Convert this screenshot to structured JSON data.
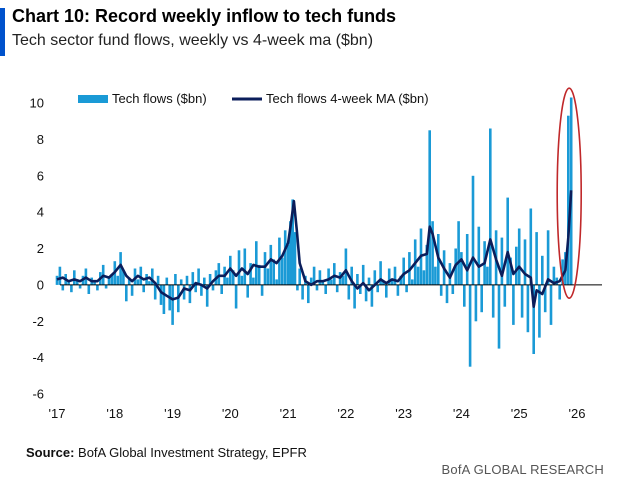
{
  "header": {
    "title": "Chart 10: Record weekly inflow to tech funds",
    "subtitle": "Tech sector fund flows, weekly vs 4-week ma ($bn)"
  },
  "footer": {
    "source_label": "Source:",
    "source_text": " BofA Global Investment Strategy, EPFR",
    "brand": "BofA GLOBAL RESEARCH"
  },
  "colors": {
    "flows": "#1a9ad6",
    "ma": "#0b1e5b",
    "highlight": "#c0282a",
    "title_accent": "#0052cc"
  },
  "chart_data": {
    "type": "bar",
    "title": "Chart 10: Record weekly inflow to tech funds",
    "subtitle": "Tech sector fund flows, weekly vs 4-week ma ($bn)",
    "xlabel": "",
    "ylabel": "",
    "x_tick_labels": [
      "'17",
      "'18",
      "'19",
      "'20",
      "'21",
      "'22",
      "'23",
      "'24",
      "'25",
      "'26"
    ],
    "y_tick_labels": [
      "10",
      "8",
      "6",
      "4",
      "2",
      "0",
      "-2",
      "-4",
      "-6"
    ],
    "ylim": [
      -6,
      10
    ],
    "xlim": [
      2017,
      2026
    ],
    "grid": false,
    "legend_position": "top-left",
    "annotation": "red ellipse highlighting latest record inflow (late 2025)",
    "series": [
      {
        "name": "Tech flows ($bn)",
        "kind": "bar",
        "points": [
          [
            2017.0,
            0.5
          ],
          [
            2017.05,
            1.0
          ],
          [
            2017.1,
            -0.3
          ],
          [
            2017.15,
            0.6
          ],
          [
            2017.2,
            0.2
          ],
          [
            2017.25,
            -0.4
          ],
          [
            2017.3,
            0.8
          ],
          [
            2017.35,
            0.3
          ],
          [
            2017.4,
            -0.2
          ],
          [
            2017.45,
            0.5
          ],
          [
            2017.5,
            0.9
          ],
          [
            2017.55,
            -0.5
          ],
          [
            2017.6,
            0.4
          ],
          [
            2017.65,
            0.2
          ],
          [
            2017.7,
            -0.3
          ],
          [
            2017.75,
            0.7
          ],
          [
            2017.8,
            1.1
          ],
          [
            2017.85,
            -0.2
          ],
          [
            2017.9,
            0.4
          ],
          [
            2017.95,
            0.6
          ],
          [
            2018.0,
            1.3
          ],
          [
            2018.05,
            0.5
          ],
          [
            2018.1,
            1.8
          ],
          [
            2018.15,
            0.8
          ],
          [
            2018.2,
            -0.9
          ],
          [
            2018.25,
            0.4
          ],
          [
            2018.3,
            -0.6
          ],
          [
            2018.35,
            0.9
          ],
          [
            2018.4,
            0.3
          ],
          [
            2018.45,
            1.0
          ],
          [
            2018.5,
            -0.4
          ],
          [
            2018.55,
            0.6
          ],
          [
            2018.6,
            0.2
          ],
          [
            2018.65,
            0.9
          ],
          [
            2018.7,
            -0.8
          ],
          [
            2018.75,
            0.5
          ],
          [
            2018.8,
            -1.1
          ],
          [
            2018.85,
            -1.6
          ],
          [
            2018.9,
            0.4
          ],
          [
            2018.95,
            -1.4
          ],
          [
            2019.0,
            -2.2
          ],
          [
            2019.05,
            0.6
          ],
          [
            2019.1,
            -1.5
          ],
          [
            2019.15,
            0.3
          ],
          [
            2019.2,
            -0.8
          ],
          [
            2019.25,
            0.5
          ],
          [
            2019.3,
            -1.0
          ],
          [
            2019.35,
            0.7
          ],
          [
            2019.4,
            -0.4
          ],
          [
            2019.45,
            0.9
          ],
          [
            2019.5,
            -0.6
          ],
          [
            2019.55,
            0.4
          ],
          [
            2019.6,
            -1.2
          ],
          [
            2019.65,
            0.6
          ],
          [
            2019.7,
            -0.3
          ],
          [
            2019.75,
            0.8
          ],
          [
            2019.8,
            1.2
          ],
          [
            2019.85,
            -0.5
          ],
          [
            2019.9,
            1.0
          ],
          [
            2019.95,
            0.4
          ],
          [
            2020.0,
            1.6
          ],
          [
            2020.05,
            0.8
          ],
          [
            2020.1,
            -1.3
          ],
          [
            2020.15,
            1.9
          ],
          [
            2020.2,
            0.5
          ],
          [
            2020.25,
            2.0
          ],
          [
            2020.3,
            -0.7
          ],
          [
            2020.35,
            1.2
          ],
          [
            2020.4,
            0.4
          ],
          [
            2020.45,
            2.4
          ],
          [
            2020.5,
            1.1
          ],
          [
            2020.55,
            -0.6
          ],
          [
            2020.6,
            1.8
          ],
          [
            2020.65,
            0.9
          ],
          [
            2020.7,
            2.2
          ],
          [
            2020.75,
            1.4
          ],
          [
            2020.8,
            0.3
          ],
          [
            2020.85,
            2.6
          ],
          [
            2020.9,
            1.5
          ],
          [
            2020.95,
            3.0
          ],
          [
            2021.0,
            2.2
          ],
          [
            2021.04,
            3.5
          ],
          [
            2021.08,
            4.7
          ],
          [
            2021.12,
            2.9
          ],
          [
            2021.16,
            -0.3
          ],
          [
            2021.2,
            0.9
          ],
          [
            2021.25,
            -0.8
          ],
          [
            2021.3,
            0.5
          ],
          [
            2021.35,
            -1.0
          ],
          [
            2021.4,
            0.4
          ],
          [
            2021.45,
            1.0
          ],
          [
            2021.5,
            -0.3
          ],
          [
            2021.55,
            0.8
          ],
          [
            2021.6,
            0.2
          ],
          [
            2021.65,
            -0.5
          ],
          [
            2021.7,
            0.9
          ],
          [
            2021.75,
            0.3
          ],
          [
            2021.8,
            1.2
          ],
          [
            2021.85,
            -0.4
          ],
          [
            2021.9,
            0.7
          ],
          [
            2021.95,
            0.5
          ],
          [
            2022.0,
            2.0
          ],
          [
            2022.05,
            -0.8
          ],
          [
            2022.1,
            1.0
          ],
          [
            2022.15,
            -1.3
          ],
          [
            2022.2,
            0.6
          ],
          [
            2022.25,
            -0.5
          ],
          [
            2022.3,
            1.1
          ],
          [
            2022.35,
            -0.9
          ],
          [
            2022.4,
            0.4
          ],
          [
            2022.45,
            -1.2
          ],
          [
            2022.5,
            0.8
          ],
          [
            2022.55,
            -0.4
          ],
          [
            2022.6,
            1.3
          ],
          [
            2022.65,
            0.2
          ],
          [
            2022.7,
            -0.7
          ],
          [
            2022.75,
            0.9
          ],
          [
            2022.8,
            0.3
          ],
          [
            2022.85,
            1.0
          ],
          [
            2022.9,
            -0.6
          ],
          [
            2022.95,
            0.5
          ],
          [
            2023.0,
            1.5
          ],
          [
            2023.05,
            -0.4
          ],
          [
            2023.1,
            1.8
          ],
          [
            2023.15,
            0.3
          ],
          [
            2023.2,
            2.5
          ],
          [
            2023.25,
            1.0
          ],
          [
            2023.3,
            3.1
          ],
          [
            2023.35,
            0.8
          ],
          [
            2023.4,
            2.2
          ],
          [
            2023.45,
            8.5
          ],
          [
            2023.5,
            3.5
          ],
          [
            2023.55,
            1.0
          ],
          [
            2023.6,
            2.8
          ],
          [
            2023.65,
            -0.6
          ],
          [
            2023.7,
            1.9
          ],
          [
            2023.75,
            -1.0
          ],
          [
            2023.8,
            1.2
          ],
          [
            2023.85,
            -0.5
          ],
          [
            2023.9,
            2.0
          ],
          [
            2023.95,
            3.5
          ],
          [
            2024.0,
            1.8
          ],
          [
            2024.05,
            -1.2
          ],
          [
            2024.1,
            2.8
          ],
          [
            2024.15,
            -4.5
          ],
          [
            2024.2,
            6.0
          ],
          [
            2024.25,
            -2.0
          ],
          [
            2024.3,
            3.2
          ],
          [
            2024.35,
            -1.5
          ],
          [
            2024.4,
            2.4
          ],
          [
            2024.45,
            1.0
          ],
          [
            2024.5,
            8.6
          ],
          [
            2024.55,
            -1.8
          ],
          [
            2024.6,
            3.0
          ],
          [
            2024.65,
            -3.5
          ],
          [
            2024.7,
            2.6
          ],
          [
            2024.75,
            -1.2
          ],
          [
            2024.8,
            4.8
          ],
          [
            2024.85,
            1.5
          ],
          [
            2024.9,
            -2.2
          ],
          [
            2024.95,
            2.1
          ],
          [
            2025.0,
            3.1
          ],
          [
            2025.05,
            -1.8
          ],
          [
            2025.1,
            2.5
          ],
          [
            2025.15,
            -2.6
          ],
          [
            2025.2,
            4.2
          ],
          [
            2025.25,
            -3.8
          ],
          [
            2025.3,
            2.9
          ],
          [
            2025.35,
            -2.9
          ],
          [
            2025.4,
            1.6
          ],
          [
            2025.45,
            -1.5
          ],
          [
            2025.5,
            3.0
          ],
          [
            2025.55,
            -2.2
          ],
          [
            2025.6,
            1.0
          ],
          [
            2025.65,
            0.4
          ],
          [
            2025.7,
            -0.8
          ],
          [
            2025.75,
            1.4
          ],
          [
            2025.8,
            1.8
          ],
          [
            2025.85,
            9.3
          ],
          [
            2025.9,
            10.3
          ]
        ]
      },
      {
        "name": "Tech flows 4-week MA ($bn)",
        "kind": "line",
        "points": [
          [
            2017.0,
            0.3
          ],
          [
            2017.1,
            0.4
          ],
          [
            2017.2,
            0.2
          ],
          [
            2017.3,
            0.3
          ],
          [
            2017.4,
            0.2
          ],
          [
            2017.5,
            0.4
          ],
          [
            2017.6,
            0.2
          ],
          [
            2017.7,
            0.2
          ],
          [
            2017.8,
            0.5
          ],
          [
            2017.9,
            0.4
          ],
          [
            2018.0,
            0.7
          ],
          [
            2018.1,
            1.1
          ],
          [
            2018.2,
            0.5
          ],
          [
            2018.3,
            0.2
          ],
          [
            2018.4,
            0.5
          ],
          [
            2018.5,
            0.3
          ],
          [
            2018.6,
            0.4
          ],
          [
            2018.7,
            0.1
          ],
          [
            2018.8,
            -0.4
          ],
          [
            2018.9,
            -0.6
          ],
          [
            2019.0,
            -0.8
          ],
          [
            2019.1,
            -0.7
          ],
          [
            2019.2,
            -0.2
          ],
          [
            2019.3,
            -0.3
          ],
          [
            2019.4,
            0.1
          ],
          [
            2019.5,
            0.0
          ],
          [
            2019.6,
            -0.2
          ],
          [
            2019.7,
            0.2
          ],
          [
            2019.8,
            0.5
          ],
          [
            2019.9,
            0.5
          ],
          [
            2020.0,
            0.9
          ],
          [
            2020.1,
            0.5
          ],
          [
            2020.2,
            0.9
          ],
          [
            2020.3,
            0.6
          ],
          [
            2020.4,
            1.1
          ],
          [
            2020.5,
            1.0
          ],
          [
            2020.6,
            1.0
          ],
          [
            2020.7,
            1.4
          ],
          [
            2020.8,
            1.2
          ],
          [
            2020.9,
            1.6
          ],
          [
            2021.0,
            2.3
          ],
          [
            2021.05,
            3.4
          ],
          [
            2021.1,
            4.6
          ],
          [
            2021.15,
            3.0
          ],
          [
            2021.2,
            1.2
          ],
          [
            2021.3,
            0.2
          ],
          [
            2021.4,
            0.0
          ],
          [
            2021.5,
            0.2
          ],
          [
            2021.6,
            0.2
          ],
          [
            2021.7,
            0.3
          ],
          [
            2021.8,
            0.5
          ],
          [
            2021.9,
            0.4
          ],
          [
            2022.0,
            0.8
          ],
          [
            2022.1,
            0.2
          ],
          [
            2022.2,
            -0.2
          ],
          [
            2022.3,
            0.1
          ],
          [
            2022.4,
            -0.3
          ],
          [
            2022.5,
            0.0
          ],
          [
            2022.6,
            0.3
          ],
          [
            2022.7,
            0.1
          ],
          [
            2022.8,
            0.3
          ],
          [
            2022.9,
            0.2
          ],
          [
            2023.0,
            0.6
          ],
          [
            2023.1,
            0.8
          ],
          [
            2023.2,
            1.2
          ],
          [
            2023.3,
            1.6
          ],
          [
            2023.4,
            1.7
          ],
          [
            2023.45,
            3.2
          ],
          [
            2023.5,
            2.8
          ],
          [
            2023.6,
            1.5
          ],
          [
            2023.7,
            0.9
          ],
          [
            2023.8,
            0.4
          ],
          [
            2023.9,
            1.1
          ],
          [
            2024.0,
            1.4
          ],
          [
            2024.1,
            0.8
          ],
          [
            2024.2,
            1.5
          ],
          [
            2024.3,
            1.0
          ],
          [
            2024.4,
            1.2
          ],
          [
            2024.5,
            2.5
          ],
          [
            2024.6,
            1.4
          ],
          [
            2024.7,
            0.5
          ],
          [
            2024.8,
            1.8
          ],
          [
            2024.9,
            0.6
          ],
          [
            2025.0,
            1.0
          ],
          [
            2025.1,
            0.6
          ],
          [
            2025.2,
            0.4
          ],
          [
            2025.25,
            -1.2
          ],
          [
            2025.3,
            -0.3
          ],
          [
            2025.4,
            -0.5
          ],
          [
            2025.5,
            0.3
          ],
          [
            2025.6,
            0.1
          ],
          [
            2025.7,
            0.2
          ],
          [
            2025.8,
            0.8
          ],
          [
            2025.85,
            2.6
          ],
          [
            2025.9,
            5.2
          ]
        ]
      }
    ]
  }
}
